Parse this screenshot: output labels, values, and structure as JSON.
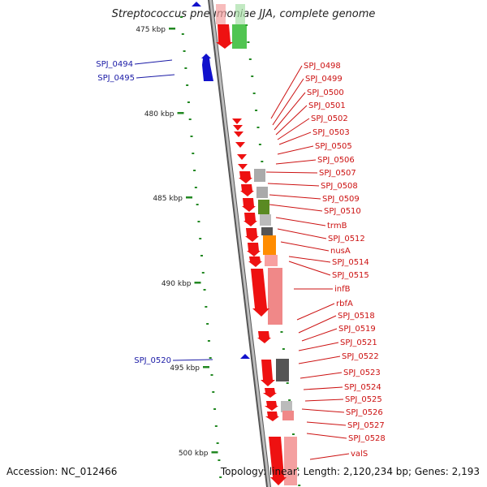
{
  "title": "Streptococcus pneumoniae JJA, complete genome",
  "footer": {
    "accession": "Accession: NC_012466",
    "summary": "Topology: linear; Length: 2,120,234 bp; Genes: 2,193"
  },
  "colors": {
    "forward_gene": "#ee1111",
    "reverse_gene": "#1111cc",
    "left_label": "#1a1aa6",
    "right_label": "#cc1111",
    "tick": "#228822",
    "axis": "#888888"
  },
  "scale_labels": [
    "475 kbp",
    "480 kbp",
    "485 kbp",
    "490 kbp",
    "495 kbp",
    "500 kbp"
  ],
  "left_genes": [
    {
      "label": "SPJ_0494",
      "strand": "reverse"
    },
    {
      "label": "SPJ_0495",
      "strand": "reverse"
    },
    {
      "label": "SPJ_0520",
      "strand": "reverse"
    }
  ],
  "right_genes": [
    {
      "label": "SPJ_0498"
    },
    {
      "label": "SPJ_0499"
    },
    {
      "label": "SPJ_0500"
    },
    {
      "label": "SPJ_0501"
    },
    {
      "label": "SPJ_0502"
    },
    {
      "label": "SPJ_0503"
    },
    {
      "label": "SPJ_0505"
    },
    {
      "label": "SPJ_0506"
    },
    {
      "label": "SPJ_0507"
    },
    {
      "label": "SPJ_0508"
    },
    {
      "label": "SPJ_0509"
    },
    {
      "label": "SPJ_0510"
    },
    {
      "label": "trmB"
    },
    {
      "label": "SPJ_0512"
    },
    {
      "label": "nusA"
    },
    {
      "label": "SPJ_0514"
    },
    {
      "label": "SPJ_0515"
    },
    {
      "label": "infB"
    },
    {
      "label": "rbfA"
    },
    {
      "label": "SPJ_0518"
    },
    {
      "label": "SPJ_0519"
    },
    {
      "label": "SPJ_0521"
    },
    {
      "label": "SPJ_0522"
    },
    {
      "label": "SPJ_0523"
    },
    {
      "label": "SPJ_0524"
    },
    {
      "label": "SPJ_0525"
    },
    {
      "label": "SPJ_0526"
    },
    {
      "label": "SPJ_0527"
    },
    {
      "label": "SPJ_0528"
    },
    {
      "label": "valS"
    }
  ]
}
